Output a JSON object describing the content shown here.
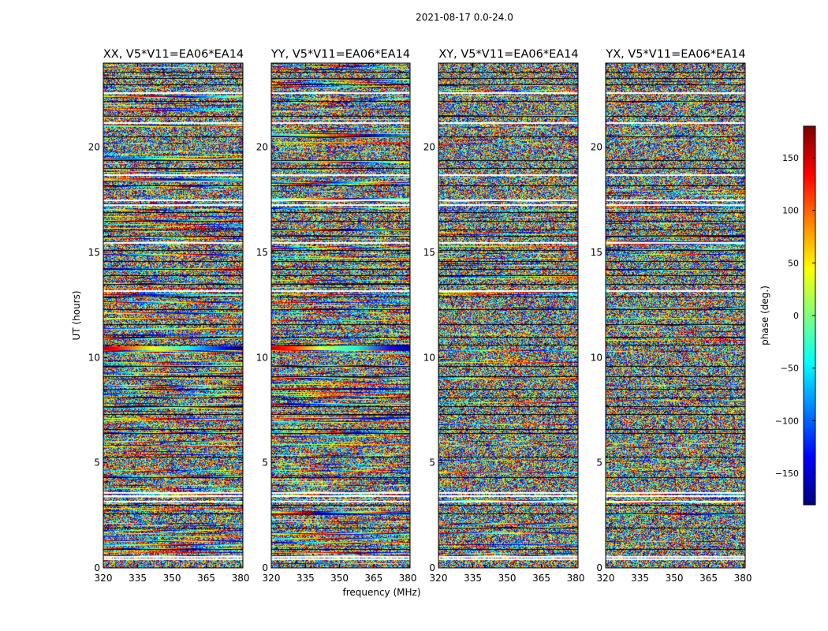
{
  "chart_data": {
    "type": "heatmap",
    "suptitle": "2021-08-17 0.0-24.0",
    "colormap": "jet",
    "panels": [
      {
        "title": "XX, V5*V11=EA06*EA14",
        "seed": 11,
        "strong": 1.0
      },
      {
        "title": "YY, V5*V11=EA06*EA14",
        "seed": 23,
        "strong": 0.9
      },
      {
        "title": "XY, V5*V11=EA06*EA14",
        "seed": 37,
        "strong": 0.35
      },
      {
        "title": "YX, V5*V11=EA06*EA14",
        "seed": 51,
        "strong": 0.3
      }
    ],
    "xlabel": "frequency (MHz)",
    "ylabel": "UT (hours)",
    "xlim": [
      320,
      381
    ],
    "ylim": [
      0,
      24
    ],
    "xticks": [
      320,
      335,
      350,
      365,
      380
    ],
    "yticks": [
      0,
      5,
      10,
      15,
      20
    ],
    "colorbar": {
      "label": "phase (deg.)",
      "range": [
        -180,
        180
      ],
      "ticks": [
        150,
        100,
        50,
        0,
        -50,
        -100,
        -150
      ],
      "tick_labels": [
        "150",
        "100",
        "50",
        "0",
        "−50",
        "−100",
        "−150"
      ]
    },
    "white_gaps_ut": [
      0.45,
      0.55,
      3.2,
      3.45,
      3.6,
      17.3,
      17.5,
      15.5,
      13.2,
      18.7,
      21.2,
      22.6
    ],
    "black_lines_ut": [
      0.9,
      1.9,
      2.6,
      3.0,
      4.3,
      5.3,
      6.4,
      6.6,
      7.3,
      7.7,
      8.1,
      8.5,
      9.1,
      9.6,
      10.6,
      11.0,
      11.6,
      12.3,
      12.9,
      13.5,
      13.9,
      14.2,
      14.6,
      15.1,
      15.8,
      16.1,
      16.5,
      16.9,
      18.2,
      19.0,
      19.4,
      20.5,
      21.5,
      22.2,
      23.0,
      23.3,
      23.6
    ],
    "colored_band_ut": [
      10.4,
      10.55
    ]
  }
}
